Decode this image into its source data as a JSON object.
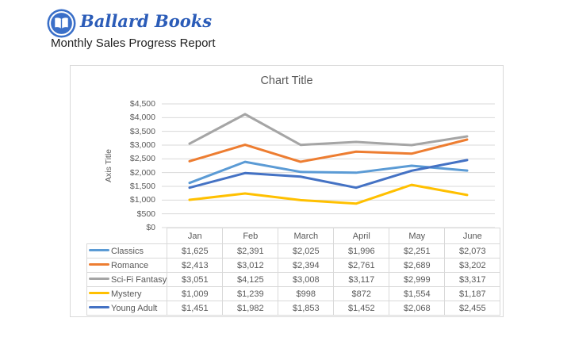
{
  "page": {
    "logo_text": "Ballard Books",
    "subtitle": "Monthly Sales Progress Report"
  },
  "colors": {
    "logo_blue": "#3A6FC8",
    "logo_text_blue": "#2B5CB8",
    "grid": "#D9D9D9",
    "chart_text": "#595959"
  },
  "chart_data": {
    "type": "line",
    "title": "Chart Title",
    "y_axis_title": "Axis Title",
    "categories": [
      "Jan",
      "Feb",
      "March",
      "April",
      "May",
      "June"
    ],
    "series": [
      {
        "name": "Classics",
        "color": "#5B9BD5",
        "values": [
          1625,
          2391,
          2025,
          1996,
          2251,
          2073
        ]
      },
      {
        "name": "Romance",
        "color": "#ED7D31",
        "values": [
          2413,
          3012,
          2394,
          2761,
          2689,
          3202
        ]
      },
      {
        "name": "Sci-Fi Fantasy",
        "color": "#A5A5A5",
        "values": [
          3051,
          4125,
          3008,
          3117,
          2999,
          3317
        ]
      },
      {
        "name": "Mystery",
        "color": "#FFC000",
        "values": [
          1009,
          1239,
          998,
          872,
          1554,
          1187
        ]
      },
      {
        "name": "Young Adult",
        "color": "#4472C4",
        "values": [
          1451,
          1982,
          1853,
          1452,
          2068,
          2455
        ]
      }
    ],
    "ylim": [
      0,
      4500
    ],
    "ytick_step": 500,
    "ytick_labels": [
      "$0",
      "$500",
      "$1,000",
      "$1,500",
      "$2,000",
      "$2,500",
      "$3,000",
      "$3,500",
      "$4,000",
      "$4,500"
    ],
    "value_prefix": "$",
    "grid": true,
    "legend_position": "left-of-data-table",
    "has_data_table": true
  }
}
